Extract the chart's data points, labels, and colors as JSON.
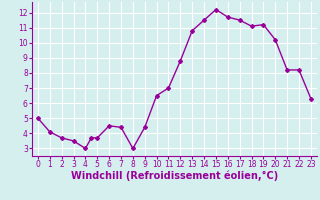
{
  "x": [
    0,
    1,
    2,
    3,
    4,
    4.5,
    5,
    6,
    7,
    8,
    9,
    10,
    11,
    12,
    13,
    14,
    15,
    16,
    17,
    18,
    19,
    20,
    21,
    22,
    23
  ],
  "y": [
    5.0,
    4.1,
    3.7,
    3.5,
    3.0,
    3.7,
    3.7,
    4.5,
    4.4,
    3.0,
    4.4,
    6.5,
    7.0,
    8.8,
    10.8,
    11.5,
    12.2,
    11.7,
    11.5,
    11.1,
    11.2,
    10.2,
    8.2,
    8.2,
    6.3
  ],
  "line_color": "#990099",
  "marker": "D",
  "markersize": 2.0,
  "linewidth": 1.0,
  "xlabel": "Windchill (Refroidissement éolien,°C)",
  "xlim": [
    -0.5,
    23.5
  ],
  "ylim": [
    2.5,
    12.7
  ],
  "yticks": [
    3,
    4,
    5,
    6,
    7,
    8,
    9,
    10,
    11,
    12
  ],
  "xticks": [
    0,
    1,
    2,
    3,
    4,
    5,
    6,
    7,
    8,
    9,
    10,
    11,
    12,
    13,
    14,
    15,
    16,
    17,
    18,
    19,
    20,
    21,
    22,
    23
  ],
  "bg_color": "#d5efef",
  "grid_color": "#ffffff",
  "tick_label_fontsize": 5.5,
  "xlabel_fontsize": 7,
  "xlabel_color": "#990099"
}
